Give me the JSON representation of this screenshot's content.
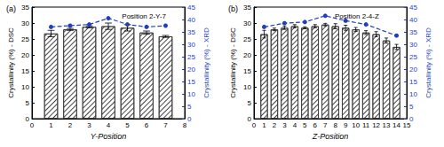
{
  "chart_data": [
    {
      "type": "bar",
      "title": "(a)",
      "annotation": "Position 2-Y-7",
      "x_label": "Y-Position",
      "y_label": "Crystallinity (%) - DSC",
      "y2_label": "Crystallinity (%) - XRD",
      "xlim": [
        0,
        8
      ],
      "xticks": [
        0,
        1,
        2,
        3,
        4,
        5,
        6,
        7,
        8
      ],
      "ylim": [
        0,
        35
      ],
      "yticks": [
        0,
        5,
        10,
        15,
        20,
        25,
        30,
        35
      ],
      "y2lim": [
        0,
        45
      ],
      "y2ticks": [
        0,
        5,
        10,
        15,
        20,
        25,
        30,
        35,
        40,
        45
      ],
      "series": [
        {
          "type": "bar",
          "color": "#ffffff",
          "x": [
            1,
            2,
            3,
            4,
            5,
            6,
            7
          ],
          "values": [
            26.7,
            28.0,
            28.8,
            29.0,
            28.5,
            27.0,
            25.8
          ],
          "errors": [
            1.0,
            0.3,
            0.3,
            1.0,
            1.0,
            0.5,
            0.3
          ]
        },
        {
          "type": "line",
          "axis": "y2",
          "color": "#1f3fbf",
          "marker": "circle",
          "line_style": "dashed",
          "x": [
            1,
            2,
            3,
            4,
            5,
            6,
            7
          ],
          "values": [
            37.0,
            37.5,
            38.0,
            40.5,
            38.0,
            37.0,
            37.5
          ]
        }
      ]
    },
    {
      "type": "bar",
      "title": "(b)",
      "annotation": "Position 2-4-Z",
      "x_label": "Z-Position",
      "y_label": "Crystallinity (%) - DSC",
      "y2_label": "Crystallinity (%) - XRD",
      "xlim": [
        0,
        15
      ],
      "xticks": [
        0,
        1,
        2,
        3,
        4,
        5,
        6,
        7,
        8,
        9,
        10,
        11,
        12,
        13,
        14,
        15
      ],
      "ylim": [
        0,
        35
      ],
      "yticks": [
        0,
        5,
        10,
        15,
        20,
        25,
        30,
        35
      ],
      "y2lim": [
        0,
        45
      ],
      "y2ticks": [
        0,
        5,
        10,
        15,
        20,
        25,
        30,
        35,
        40,
        45
      ],
      "series": [
        {
          "type": "bar",
          "color": "#ffffff",
          "x": [
            1,
            2,
            3,
            4,
            5,
            6,
            7,
            8,
            9,
            10,
            11,
            12,
            13,
            14
          ],
          "values": [
            26.5,
            28.0,
            28.5,
            29.0,
            28.5,
            29.0,
            29.5,
            29.0,
            28.5,
            28.0,
            27.0,
            26.5,
            24.5,
            22.5
          ],
          "errors": [
            1.2,
            0.4,
            0.5,
            0.5,
            0.3,
            0.5,
            0.4,
            0.8,
            0.8,
            0.6,
            0.6,
            0.8,
            0.8,
            0.8
          ]
        },
        {
          "type": "line",
          "axis": "y2",
          "color": "#1f3fbf",
          "marker": "circle",
          "line_style": "dashed",
          "x": [
            1,
            3,
            5,
            7,
            9,
            11,
            14
          ],
          "values": [
            37.0,
            38.5,
            39.0,
            41.5,
            39.5,
            38.0,
            33.5
          ]
        }
      ]
    }
  ]
}
